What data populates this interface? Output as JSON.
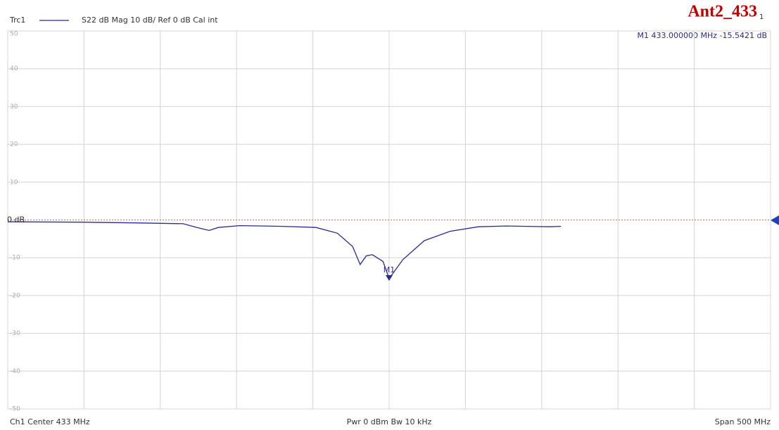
{
  "chart_data": {
    "type": "line",
    "trace_name": "Trc1",
    "trace_info": "S22  dB Mag  10 dB/ Ref 0 dB  Cal int",
    "title": "Ant2_433",
    "title_suffix": "1",
    "marker_readout": "M1  433.000000 MHz  -15.5421 dB",
    "footer_left": "Ch1  Center  433 MHz",
    "footer_center": "Pwr  0 dBm  Bw  10 kHz",
    "footer_right": "Span  500 MHz",
    "xlim": [
      183,
      683
    ],
    "xticks": [
      183,
      233,
      283,
      333,
      383,
      433,
      483,
      533,
      583,
      633,
      683
    ],
    "ylim": [
      -50,
      50
    ],
    "yticks": [
      50,
      40,
      30,
      20,
      10,
      {
        "value": 0,
        "label": "0 dB"
      },
      -10,
      -20,
      -30,
      -40,
      -50
    ],
    "grid": true,
    "series": [
      {
        "name": "Trc1",
        "color": "#2b2b8c",
        "x": [
          183,
          233,
          270,
          298,
          307,
          315,
          321,
          335,
          363,
          385,
          399,
          409,
          414,
          418,
          422,
          429,
          433,
          442,
          456,
          473,
          491.6,
          510,
          538,
          545.6
        ],
        "values": [
          -0.5,
          -0.6,
          -0.8,
          -1.0,
          -2,
          -2.8,
          -2,
          -1.5,
          -1.7,
          -2,
          -3.5,
          -7,
          -11.8,
          -9.5,
          -9.2,
          -11,
          -15.5,
          -10.5,
          -5.5,
          -3,
          -1.8,
          -1.6,
          -1.8,
          -1.7
        ]
      }
    ],
    "marker": {
      "label": "M1",
      "x": 433,
      "y": -15.5421
    }
  }
}
